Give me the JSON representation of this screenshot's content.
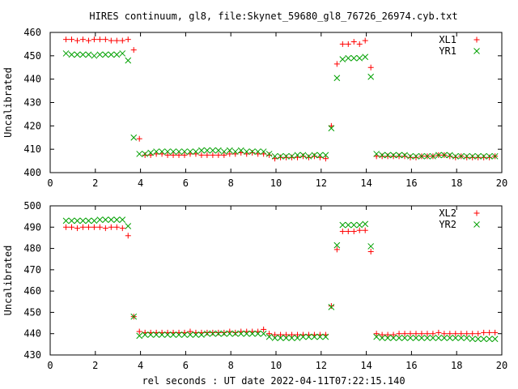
{
  "chart_data": {
    "type": "scatter",
    "title": "HIRES continuum, gl8, file:Skynet_59680_gl8_76726_26974.cyb.txt",
    "xlabel": "rel seconds : UT date 2022-04-11T07:22:15.140",
    "colors": {
      "XL": "#ff0000",
      "YR": "#00a000",
      "axis": "#000000"
    },
    "marker_glyphs": {
      "XL": "plus",
      "YR": "cross"
    },
    "panels": [
      {
        "ylabel": "Uncalibrated",
        "xlim": [
          0,
          20
        ],
        "ylim": [
          400,
          460
        ],
        "xticks": [
          0,
          2,
          4,
          6,
          8,
          10,
          12,
          14,
          16,
          18,
          20
        ],
        "yticks": [
          400,
          410,
          420,
          430,
          440,
          450,
          460
        ],
        "legend_position": "top-right",
        "series": [
          {
            "name": "XL1",
            "marker": "plus",
            "color": "#ff0000",
            "x": [
              0.7,
              0.95,
              1.2,
              1.45,
              1.7,
              1.95,
              2.2,
              2.45,
              2.7,
              2.95,
              3.2,
              3.45,
              3.7,
              3.95,
              4.2,
              4.45,
              4.7,
              4.95,
              5.2,
              5.45,
              5.7,
              5.95,
              6.2,
              6.45,
              6.7,
              6.95,
              7.2,
              7.45,
              7.7,
              7.95,
              8.2,
              8.45,
              8.7,
              8.95,
              9.2,
              9.45,
              9.7,
              9.95,
              10.2,
              10.45,
              10.7,
              10.95,
              11.2,
              11.45,
              11.7,
              11.95,
              12.2,
              12.45,
              12.7,
              12.95,
              13.2,
              13.45,
              13.7,
              13.95,
              14.2,
              14.45,
              14.7,
              14.95,
              15.2,
              15.45,
              15.7,
              15.95,
              16.2,
              16.45,
              16.7,
              16.95,
              17.2,
              17.45,
              17.7,
              17.95,
              18.2,
              18.45,
              18.7,
              18.95,
              19.2,
              19.45,
              19.7
            ],
            "y": [
              457,
              457,
              456.5,
              457,
              456.5,
              457,
              457,
              457,
              456.5,
              456.5,
              456.5,
              457,
              452.5,
              414.5,
              407.5,
              407.5,
              408,
              408,
              407.5,
              407.5,
              407.5,
              407.5,
              408,
              408,
              407.5,
              407.5,
              407.5,
              407.5,
              407.5,
              408,
              408,
              408.5,
              408,
              408.5,
              408,
              408,
              407.5,
              406,
              406.5,
              406.5,
              406.5,
              406.5,
              407,
              406.5,
              407,
              406.5,
              406,
              420,
              446.5,
              455,
              455,
              456,
              455,
              456.5,
              445,
              407,
              407,
              407,
              407,
              407,
              407,
              406.5,
              406.5,
              407,
              407,
              407,
              407.5,
              407.5,
              407,
              406.5,
              407,
              406.5,
              406.5,
              406.5,
              406.5,
              406.5,
              407
            ],
            "note": ""
          },
          {
            "name": "YR1",
            "marker": "cross",
            "color": "#00a000",
            "x": [
              0.7,
              0.95,
              1.2,
              1.45,
              1.7,
              1.95,
              2.2,
              2.45,
              2.7,
              2.95,
              3.2,
              3.45,
              3.7,
              3.95,
              4.2,
              4.45,
              4.7,
              4.95,
              5.2,
              5.45,
              5.7,
              5.95,
              6.2,
              6.45,
              6.7,
              6.95,
              7.2,
              7.45,
              7.7,
              7.95,
              8.2,
              8.45,
              8.7,
              8.95,
              9.2,
              9.45,
              9.7,
              9.95,
              10.2,
              10.45,
              10.7,
              10.95,
              11.2,
              11.45,
              11.7,
              11.95,
              12.2,
              12.45,
              12.7,
              12.95,
              13.2,
              13.45,
              13.7,
              13.95,
              14.2,
              14.45,
              14.7,
              14.95,
              15.2,
              15.45,
              15.7,
              15.95,
              16.2,
              16.45,
              16.7,
              16.95,
              17.2,
              17.45,
              17.7,
              17.95,
              18.2,
              18.45,
              18.7,
              18.95,
              19.2,
              19.45,
              19.7
            ],
            "y": [
              451,
              450.5,
              450.5,
              450.5,
              450.5,
              450,
              450.5,
              450.5,
              450.5,
              450.5,
              451,
              448,
              415,
              408,
              408,
              408.5,
              409,
              409,
              409,
              409,
              409,
              409,
              409,
              409,
              409.5,
              409.5,
              409.5,
              409.5,
              409,
              409.5,
              409,
              409.5,
              409,
              409,
              409,
              409,
              408,
              407,
              407,
              407,
              407,
              407.5,
              407.5,
              407,
              407.5,
              407.5,
              407.5,
              419,
              440.5,
              448.5,
              449,
              449,
              449,
              449.5,
              441,
              408,
              407.5,
              407.5,
              407.5,
              407.5,
              407.5,
              407,
              407,
              407,
              407,
              407,
              407.5,
              407.5,
              407.5,
              407,
              407,
              407,
              407,
              407,
              407,
              407,
              407
            ]
          }
        ]
      },
      {
        "ylabel": "Uncalibrated",
        "xlim": [
          0,
          20
        ],
        "ylim": [
          430,
          500
        ],
        "xticks": [
          0,
          2,
          4,
          6,
          8,
          10,
          12,
          14,
          16,
          18,
          20
        ],
        "yticks": [
          430,
          440,
          450,
          460,
          470,
          480,
          490,
          500
        ],
        "legend_position": "top-right",
        "series": [
          {
            "name": "XL2",
            "marker": "plus",
            "color": "#ff0000",
            "x": [
              0.7,
              0.95,
              1.2,
              1.45,
              1.7,
              1.95,
              2.2,
              2.45,
              2.7,
              2.95,
              3.2,
              3.45,
              3.7,
              3.95,
              4.2,
              4.45,
              4.7,
              4.95,
              5.2,
              5.45,
              5.7,
              5.95,
              6.2,
              6.45,
              6.7,
              6.95,
              7.2,
              7.45,
              7.7,
              7.95,
              8.2,
              8.45,
              8.7,
              8.95,
              9.2,
              9.45,
              9.7,
              9.95,
              10.2,
              10.45,
              10.7,
              10.95,
              11.2,
              11.45,
              11.7,
              11.95,
              12.2,
              12.45,
              12.7,
              12.95,
              13.2,
              13.45,
              13.7,
              13.95,
              14.2,
              14.45,
              14.7,
              14.95,
              15.2,
              15.45,
              15.7,
              15.95,
              16.2,
              16.45,
              16.7,
              16.95,
              17.2,
              17.45,
              17.7,
              17.95,
              18.2,
              18.45,
              18.7,
              18.95,
              19.2,
              19.45,
              19.7
            ],
            "y": [
              490,
              490,
              489.5,
              490,
              490,
              490,
              490,
              489.5,
              490,
              490,
              489.5,
              486,
              448,
              441,
              440.5,
              440.5,
              440.5,
              440.5,
              440.5,
              440.5,
              440.5,
              440.5,
              441,
              440.5,
              440.5,
              440.5,
              440.5,
              440.5,
              440.5,
              441,
              440.5,
              441,
              441,
              441,
              441,
              442,
              440,
              439.5,
              439.5,
              439.5,
              439.5,
              439.5,
              439.5,
              439.5,
              439.5,
              439.5,
              439.5,
              453,
              479.5,
              488,
              488,
              488,
              488.5,
              488.5,
              478.5,
              440,
              439.5,
              439.5,
              439.5,
              440,
              440,
              440,
              440,
              440,
              440,
              440,
              440.5,
              440,
              440,
              440,
              440,
              440,
              440,
              440,
              440.5,
              440.5,
              440.5
            ]
          },
          {
            "name": "YR2",
            "marker": "cross",
            "color": "#00a000",
            "x": [
              0.7,
              0.95,
              1.2,
              1.45,
              1.7,
              1.95,
              2.2,
              2.45,
              2.7,
              2.95,
              3.2,
              3.45,
              3.7,
              3.95,
              4.2,
              4.45,
              4.7,
              4.95,
              5.2,
              5.45,
              5.7,
              5.95,
              6.2,
              6.45,
              6.7,
              6.95,
              7.2,
              7.45,
              7.7,
              7.95,
              8.2,
              8.45,
              8.7,
              8.95,
              9.2,
              9.45,
              9.7,
              9.95,
              10.2,
              10.45,
              10.7,
              10.95,
              11.2,
              11.45,
              11.7,
              11.95,
              12.2,
              12.45,
              12.7,
              12.95,
              13.2,
              13.45,
              13.7,
              13.95,
              14.2,
              14.45,
              14.7,
              14.95,
              15.2,
              15.45,
              15.7,
              15.95,
              16.2,
              16.45,
              16.7,
              16.95,
              17.2,
              17.45,
              17.7,
              17.95,
              18.2,
              18.45,
              18.7,
              18.95,
              19.2,
              19.45,
              19.7
            ],
            "y": [
              493,
              493,
              493,
              493,
              493,
              493,
              493.5,
              493.5,
              493.5,
              493.5,
              493.5,
              490.5,
              448,
              439,
              439.5,
              439.5,
              439.5,
              439.5,
              439.5,
              439.5,
              439.5,
              439.5,
              439.5,
              439.5,
              439.5,
              440,
              440,
              440,
              440,
              440,
              440,
              440,
              440,
              440,
              440,
              440,
              438.5,
              438,
              438,
              438,
              438,
              438,
              438.5,
              438.5,
              438.5,
              438.5,
              438.5,
              452.5,
              481.5,
              491,
              491,
              491,
              491,
              491.5,
              481,
              438.5,
              438,
              438,
              438,
              438,
              438,
              438,
              438,
              438,
              438,
              438,
              438,
              438,
              438,
              438,
              438,
              438,
              437.5,
              437.5,
              437.5,
              437.5,
              437.5
            ]
          }
        ]
      }
    ]
  }
}
